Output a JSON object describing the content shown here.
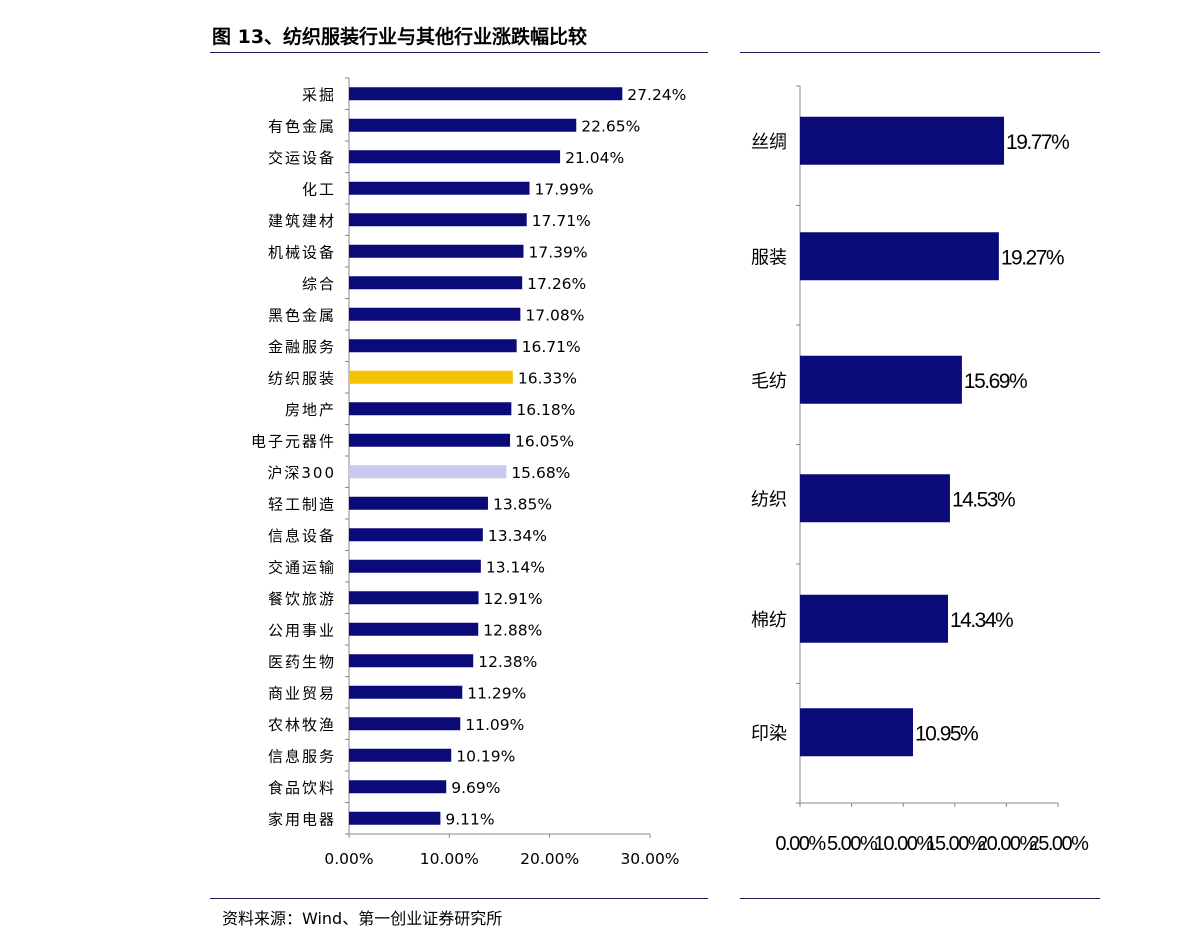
{
  "figure": {
    "title": "图 13、纺织服装行业与其他行业涨跌幅比较",
    "source": "资料来源：Wind、第一创业证券研究所"
  },
  "colors": {
    "bar": "#0a0a78",
    "highlight": "#f5c400",
    "benchmark": "#c8c8f0",
    "rule": "#1c1c5c"
  },
  "chart_data": [
    {
      "type": "bar",
      "orientation": "horizontal",
      "categories": [
        "采掘",
        "有色金属",
        "交运设备",
        "化工",
        "建筑建材",
        "机械设备",
        "综合",
        "黑色金属",
        "金融服务",
        "纺织服装",
        "房地产",
        "电子元器件",
        "沪深300",
        "轻工制造",
        "信息设备",
        "交通运输",
        "餐饮旅游",
        "公用事业",
        "医药生物",
        "商业贸易",
        "农林牧渔",
        "信息服务",
        "食品饮料",
        "家用电器"
      ],
      "values": [
        27.24,
        22.65,
        21.04,
        17.99,
        17.71,
        17.39,
        17.26,
        17.08,
        16.71,
        16.33,
        16.18,
        16.05,
        15.68,
        13.85,
        13.34,
        13.14,
        12.91,
        12.88,
        12.38,
        11.29,
        11.09,
        10.19,
        9.69,
        9.11
      ],
      "data_labels": [
        "27.24%",
        "22.65%",
        "21.04%",
        "17.99%",
        "17.71%",
        "17.39%",
        "17.26%",
        "17.08%",
        "16.71%",
        "16.33%",
        "16.18%",
        "16.05%",
        "15.68%",
        "13.85%",
        "13.34%",
        "13.14%",
        "12.91%",
        "12.88%",
        "12.38%",
        "11.29%",
        "11.09%",
        "10.19%",
        "9.69%",
        "9.11%"
      ],
      "highlight_category": "纺织服装",
      "benchmark_category": "沪深300",
      "xlim": [
        0,
        30
      ],
      "xticks": [
        0,
        10,
        20,
        30
      ],
      "xtick_labels": [
        "0.00%",
        "10.00%",
        "20.00%",
        "30.00%"
      ],
      "grid": false
    },
    {
      "type": "bar",
      "orientation": "horizontal",
      "categories": [
        "丝绸",
        "服装",
        "毛纺",
        "纺织",
        "棉纺",
        "印染"
      ],
      "values": [
        19.77,
        19.27,
        15.69,
        14.53,
        14.34,
        10.95
      ],
      "data_labels": [
        "19.77%",
        "19.27%",
        "15.69%",
        "14.53%",
        "14.34%",
        "10.95%"
      ],
      "xlim": [
        0,
        25
      ],
      "xticks": [
        0,
        5,
        10,
        15,
        20,
        25
      ],
      "xtick_labels": [
        "0.00%",
        "5.00%",
        "10.00%",
        "15.00%",
        "20.00%",
        "25.00%"
      ],
      "grid": false
    }
  ]
}
